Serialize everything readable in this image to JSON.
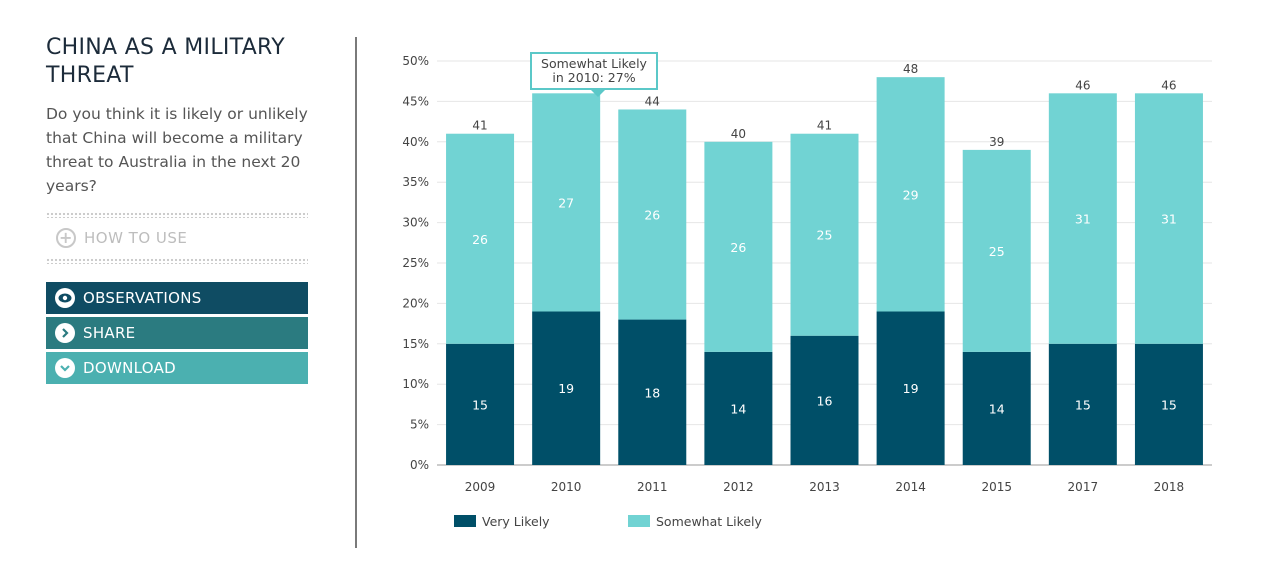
{
  "sidebar": {
    "title": "CHINA AS A MILITARY THREAT",
    "question": "Do you think it is likely or unlikely that China will become a military threat to Australia in the next 20 years?",
    "how_to_use": "HOW TO USE",
    "observations": "OBSERVATIONS",
    "share": "SHARE",
    "download": "DOWNLOAD"
  },
  "tooltip": {
    "line1": "Somewhat Likely",
    "line2": "in 2010: 27%"
  },
  "colors": {
    "very": "#004f68",
    "somewhat": "#71d3d3",
    "obs": "#0f4c63",
    "share": "#2b7b80",
    "download": "#4bb0b0"
  },
  "chart_data": {
    "type": "bar",
    "stacked": true,
    "categories": [
      "2009",
      "2010",
      "2011",
      "2012",
      "2013",
      "2014",
      "2015",
      "2017",
      "2018"
    ],
    "series": [
      {
        "name": "Very Likely",
        "values": [
          15,
          19,
          18,
          14,
          16,
          19,
          14,
          15,
          15
        ]
      },
      {
        "name": "Somewhat Likely",
        "values": [
          26,
          27,
          26,
          26,
          25,
          29,
          25,
          31,
          31
        ]
      }
    ],
    "totals": [
      "41",
      "",
      "44",
      "40",
      "41",
      "48",
      "39",
      "46",
      "46"
    ],
    "y_ticks": [
      "0%",
      "5%",
      "10%",
      "15%",
      "20%",
      "25%",
      "30%",
      "35%",
      "40%",
      "45%",
      "50%"
    ],
    "ylim": [
      0,
      50
    ],
    "legend": "bottom-left"
  }
}
